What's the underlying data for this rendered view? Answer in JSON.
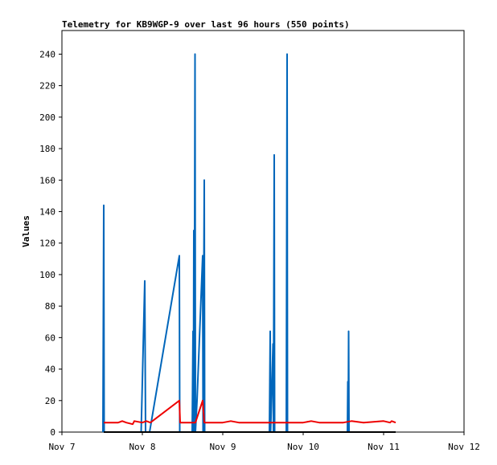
{
  "chart_data": {
    "type": "line",
    "title": "Telemetry for KB9WGP-9 over last 96 hours (550 points)",
    "xlabel": "",
    "ylabel": "Values",
    "grid": false,
    "legend": "none",
    "x_unit": "days since Nov 7 00:00",
    "xlim": [
      0,
      5
    ],
    "ylim": [
      0,
      255
    ],
    "x_ticks": [
      {
        "x": 0,
        "label": "Nov 7"
      },
      {
        "x": 1,
        "label": "Nov 8"
      },
      {
        "x": 2,
        "label": "Nov 9"
      },
      {
        "x": 3,
        "label": "Nov 10"
      },
      {
        "x": 4,
        "label": "Nov 11"
      },
      {
        "x": 5,
        "label": "Nov 12"
      }
    ],
    "y_ticks": [
      0,
      20,
      40,
      60,
      80,
      100,
      120,
      140,
      160,
      180,
      200,
      220,
      240
    ],
    "series": [
      {
        "name": "",
        "color": "#0066bb",
        "points": [
          [
            0.51,
            0
          ],
          [
            0.52,
            144
          ],
          [
            0.525,
            0
          ],
          [
            0.9,
            0
          ],
          [
            0.985,
            0
          ],
          [
            1.03,
            96
          ],
          [
            1.04,
            0
          ],
          [
            1.09,
            0
          ],
          [
            1.46,
            112
          ],
          [
            1.465,
            0
          ],
          [
            1.62,
            0
          ],
          [
            1.63,
            64
          ],
          [
            1.635,
            0
          ],
          [
            1.64,
            128
          ],
          [
            1.645,
            0
          ],
          [
            1.655,
            240
          ],
          [
            1.66,
            0
          ],
          [
            1.68,
            20
          ],
          [
            1.75,
            112
          ],
          [
            1.755,
            0
          ],
          [
            1.77,
            160
          ],
          [
            1.775,
            0
          ],
          [
            2.58,
            0
          ],
          [
            2.59,
            64
          ],
          [
            2.595,
            0
          ],
          [
            2.625,
            56
          ],
          [
            2.63,
            0
          ],
          [
            2.64,
            176
          ],
          [
            2.645,
            0
          ],
          [
            2.79,
            0
          ],
          [
            2.8,
            240
          ],
          [
            2.805,
            0
          ],
          [
            3.55,
            0
          ],
          [
            3.555,
            32
          ],
          [
            3.56,
            0
          ],
          [
            3.565,
            64
          ],
          [
            3.57,
            0
          ],
          [
            4.15,
            0
          ]
        ]
      },
      {
        "name": "",
        "color": "#ee0000",
        "points": [
          [
            0.52,
            6
          ],
          [
            0.7,
            6
          ],
          [
            0.75,
            7
          ],
          [
            0.8,
            6
          ],
          [
            0.88,
            5
          ],
          [
            0.9,
            7
          ],
          [
            1.0,
            6
          ],
          [
            1.05,
            7
          ],
          [
            1.1,
            6
          ],
          [
            1.46,
            20
          ],
          [
            1.47,
            6
          ],
          [
            1.62,
            6
          ],
          [
            1.66,
            6
          ],
          [
            1.75,
            20
          ],
          [
            1.77,
            6
          ],
          [
            2.0,
            6
          ],
          [
            2.1,
            7
          ],
          [
            2.2,
            6
          ],
          [
            3.0,
            6
          ],
          [
            3.1,
            7
          ],
          [
            3.2,
            6
          ],
          [
            3.5,
            6
          ],
          [
            3.6,
            7
          ],
          [
            3.75,
            6
          ],
          [
            4.0,
            7
          ],
          [
            4.08,
            6
          ],
          [
            4.1,
            7
          ],
          [
            4.15,
            6
          ]
        ]
      },
      {
        "name": "",
        "color": "#000000",
        "points": [
          [
            0.52,
            0
          ],
          [
            4.15,
            0
          ]
        ]
      }
    ]
  }
}
